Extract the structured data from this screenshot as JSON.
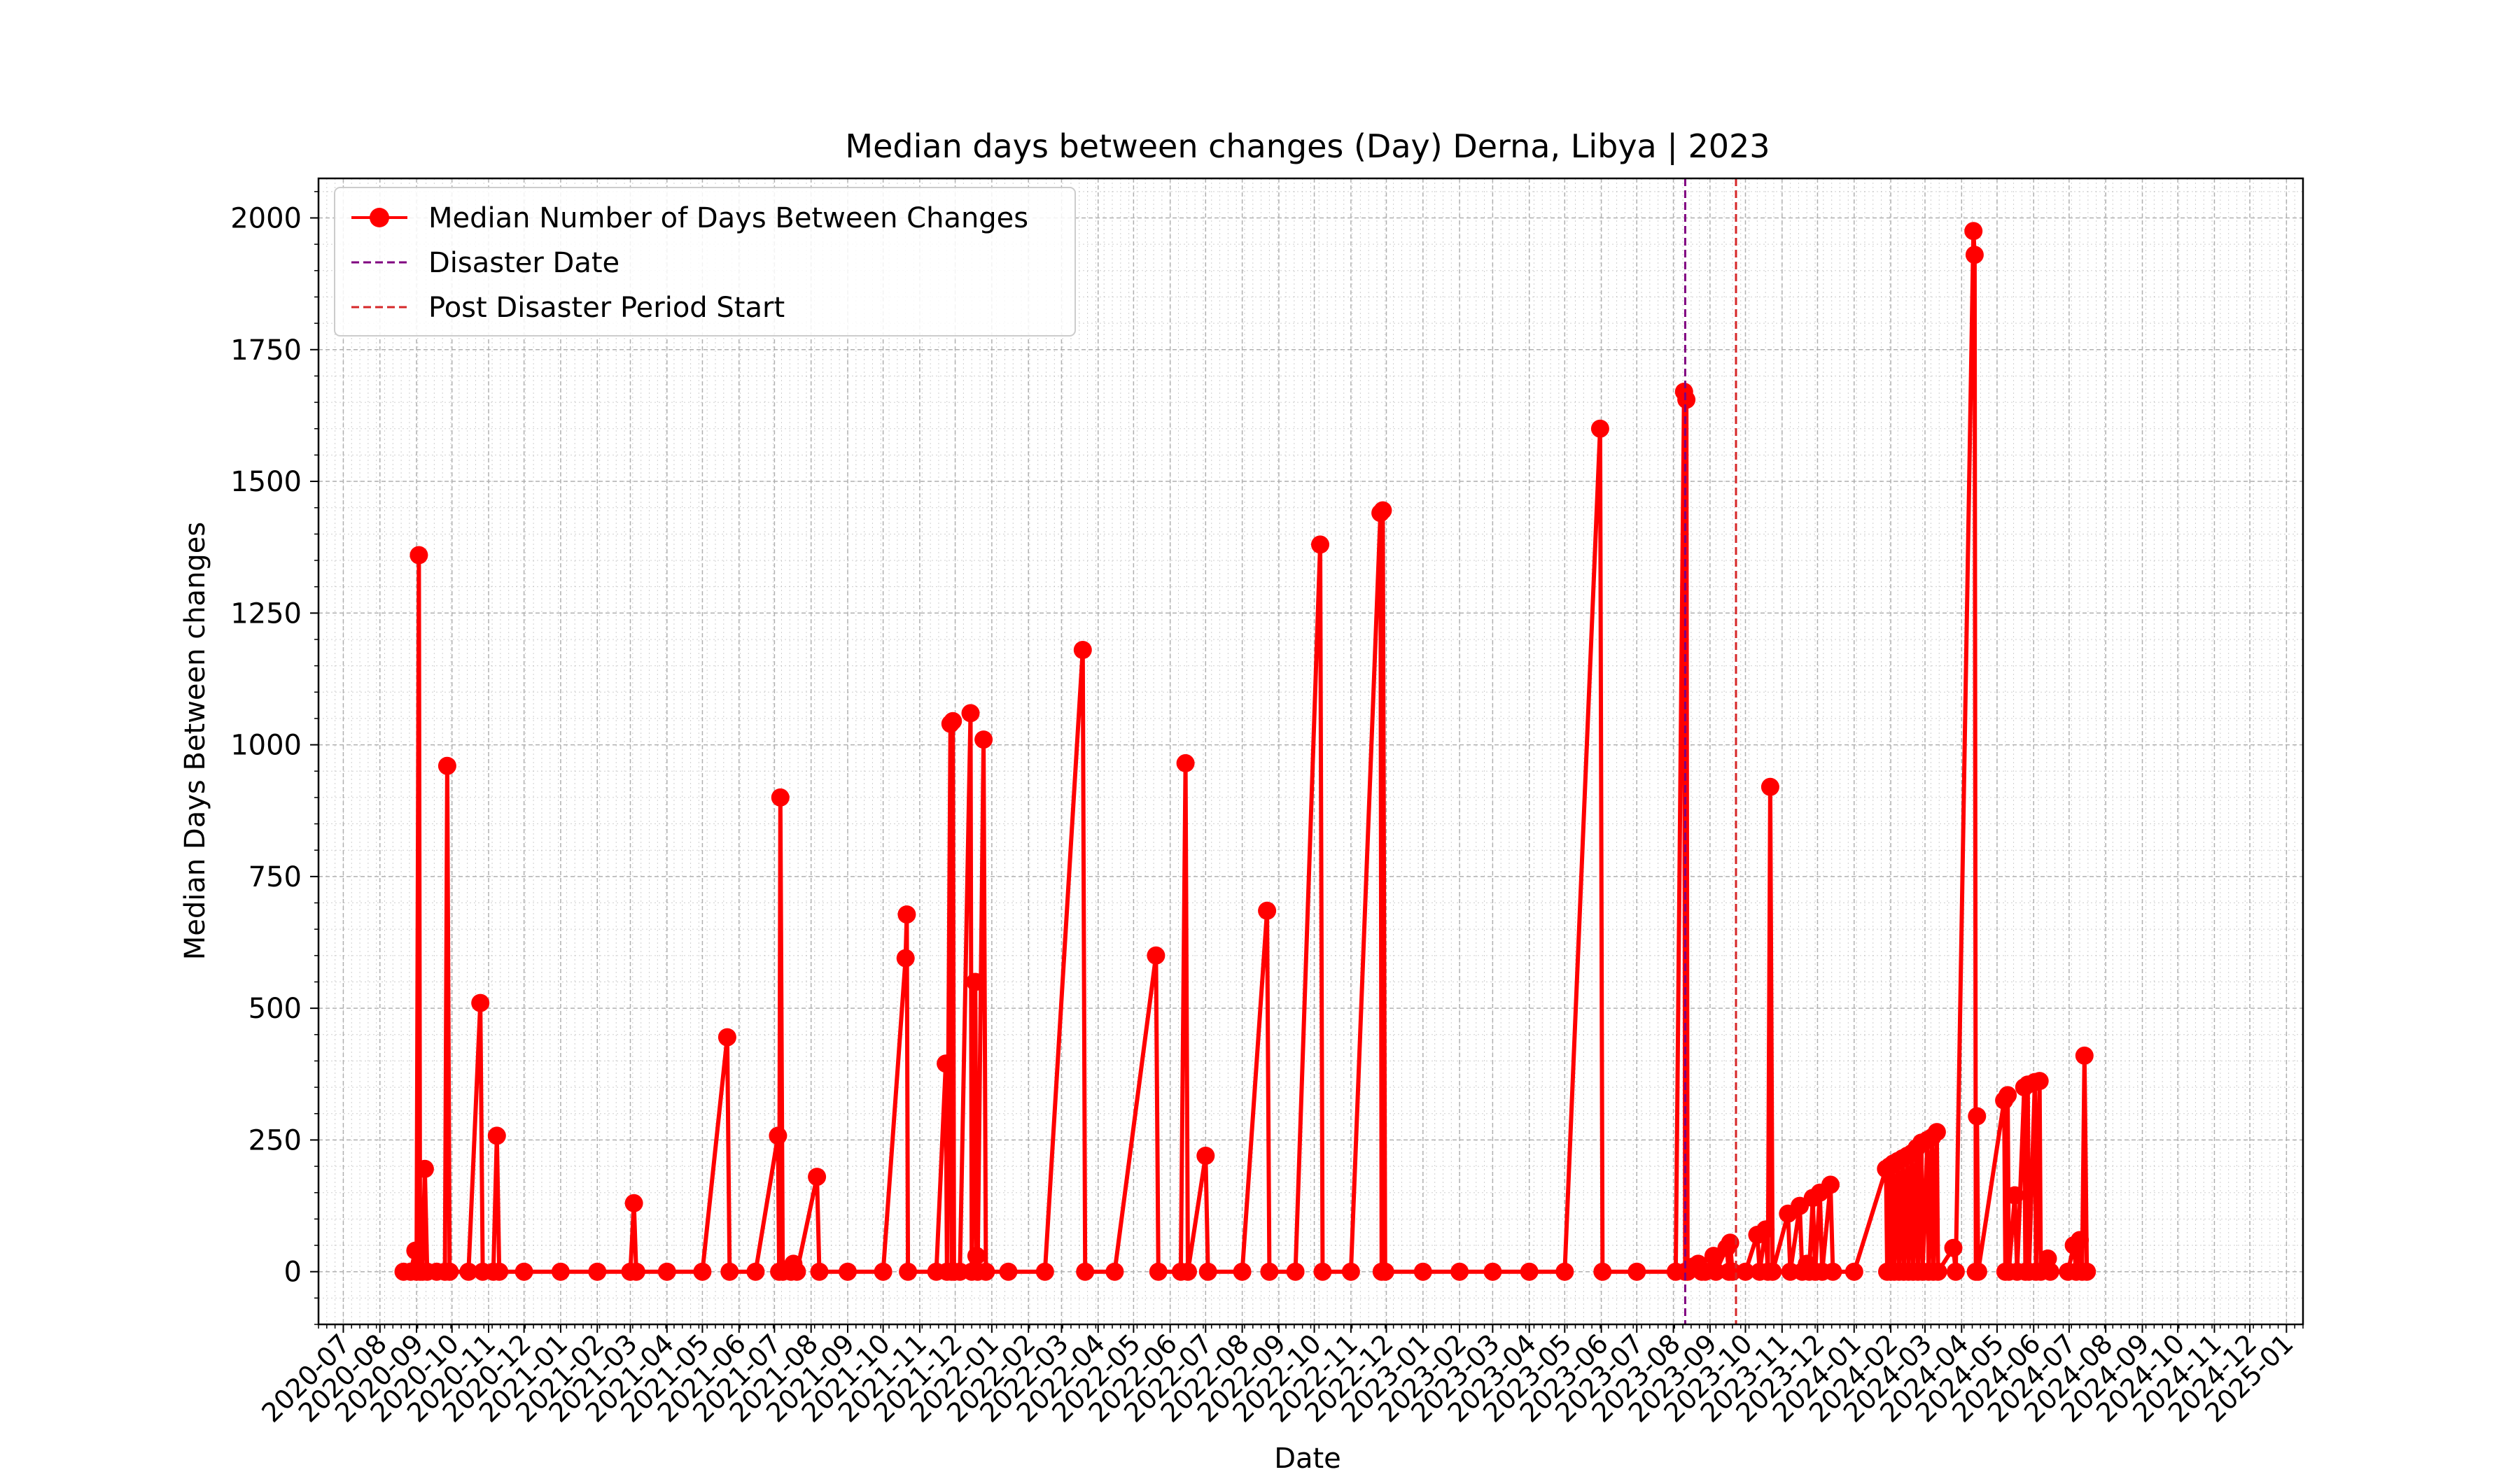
{
  "chart_data": {
    "type": "line",
    "title": "Median days between changes (Day) Derna, Libya | 2023",
    "xlabel": "Date",
    "ylabel": "Median Days Between changes",
    "xlim": [
      "2020-06-10",
      "2025-01-15"
    ],
    "ylim": [
      -100,
      2075
    ],
    "yticks": [
      0,
      250,
      500,
      750,
      1000,
      1250,
      1500,
      1750,
      2000
    ],
    "xticks": [
      "2020-07",
      "2020-08",
      "2020-09",
      "2020-10",
      "2020-11",
      "2020-12",
      "2021-01",
      "2021-02",
      "2021-03",
      "2021-04",
      "2021-05",
      "2021-06",
      "2021-07",
      "2021-08",
      "2021-09",
      "2021-10",
      "2021-11",
      "2021-12",
      "2022-01",
      "2022-02",
      "2022-03",
      "2022-04",
      "2022-05",
      "2022-06",
      "2022-07",
      "2022-08",
      "2022-09",
      "2022-10",
      "2022-11",
      "2022-12",
      "2023-01",
      "2023-02",
      "2023-03",
      "2023-04",
      "2023-05",
      "2023-06",
      "2023-07",
      "2023-08",
      "2023-09",
      "2023-10",
      "2023-11",
      "2023-12",
      "2024-01",
      "2024-02",
      "2024-03",
      "2024-04",
      "2024-05",
      "2024-06",
      "2024-07",
      "2024-08",
      "2024-09",
      "2024-10",
      "2024-11",
      "2024-12",
      "2025-01"
    ],
    "grid": true,
    "legend_position": "top-left",
    "colors": {
      "series": "#ff0000",
      "disaster": "#800080",
      "post": "#d62728",
      "grid": "#b0b0b0"
    },
    "series": [
      {
        "name": "Median Number of Days Between Changes",
        "points": [
          [
            "2020-08-21",
            0
          ],
          [
            "2020-08-27",
            0
          ],
          [
            "2020-08-31",
            40
          ],
          [
            "2020-09-01",
            0
          ],
          [
            "2020-09-03",
            1360
          ],
          [
            "2020-09-04",
            0
          ],
          [
            "2020-09-06",
            0
          ],
          [
            "2020-09-08",
            195
          ],
          [
            "2020-09-10",
            0
          ],
          [
            "2020-09-18",
            0
          ],
          [
            "2020-09-25",
            0
          ],
          [
            "2020-09-27",
            960
          ],
          [
            "2020-09-29",
            0
          ],
          [
            "2020-10-15",
            0
          ],
          [
            "2020-10-25",
            510
          ],
          [
            "2020-10-27",
            0
          ],
          [
            "2020-11-05",
            0
          ],
          [
            "2020-11-08",
            258
          ],
          [
            "2020-11-10",
            0
          ],
          [
            "2020-12-01",
            0
          ],
          [
            "2021-01-01",
            0
          ],
          [
            "2021-02-01",
            0
          ],
          [
            "2021-03-01",
            0
          ],
          [
            "2021-03-04",
            130
          ],
          [
            "2021-03-06",
            0
          ],
          [
            "2021-04-01",
            0
          ],
          [
            "2021-05-01",
            0
          ],
          [
            "2021-05-22",
            445
          ],
          [
            "2021-05-24",
            0
          ],
          [
            "2021-06-15",
            0
          ],
          [
            "2021-07-04",
            258
          ],
          [
            "2021-07-05",
            0
          ],
          [
            "2021-07-06",
            900
          ],
          [
            "2021-07-08",
            0
          ],
          [
            "2021-07-15",
            0
          ],
          [
            "2021-07-17",
            15
          ],
          [
            "2021-07-20",
            0
          ],
          [
            "2021-08-06",
            180
          ],
          [
            "2021-08-08",
            0
          ],
          [
            "2021-09-01",
            0
          ],
          [
            "2021-10-01",
            0
          ],
          [
            "2021-10-20",
            595
          ],
          [
            "2021-10-21",
            678
          ],
          [
            "2021-10-22",
            0
          ],
          [
            "2021-11-15",
            0
          ],
          [
            "2021-11-23",
            395
          ],
          [
            "2021-11-24",
            0
          ],
          [
            "2021-11-27",
            1040
          ],
          [
            "2021-11-28",
            0
          ],
          [
            "2021-11-29",
            1045
          ],
          [
            "2021-11-30",
            0
          ],
          [
            "2021-12-05",
            0
          ],
          [
            "2021-12-14",
            1060
          ],
          [
            "2021-12-15",
            0
          ],
          [
            "2021-12-18",
            550
          ],
          [
            "2021-12-19",
            30
          ],
          [
            "2021-12-20",
            0
          ],
          [
            "2021-12-25",
            1010
          ],
          [
            "2021-12-27",
            0
          ],
          [
            "2022-01-15",
            0
          ],
          [
            "2022-02-15",
            0
          ],
          [
            "2022-03-19",
            1180
          ],
          [
            "2022-03-21",
            0
          ],
          [
            "2022-04-15",
            0
          ],
          [
            "2022-05-20",
            600
          ],
          [
            "2022-05-22",
            0
          ],
          [
            "2022-06-10",
            0
          ],
          [
            "2022-06-14",
            965
          ],
          [
            "2022-06-16",
            0
          ],
          [
            "2022-07-01",
            220
          ],
          [
            "2022-07-03",
            0
          ],
          [
            "2022-08-01",
            0
          ],
          [
            "2022-08-22",
            685
          ],
          [
            "2022-08-24",
            0
          ],
          [
            "2022-09-15",
            0
          ],
          [
            "2022-10-06",
            1380
          ],
          [
            "2022-10-08",
            0
          ],
          [
            "2022-11-01",
            0
          ],
          [
            "2022-11-26",
            1440
          ],
          [
            "2022-11-27",
            0
          ],
          [
            "2022-11-28",
            1445
          ],
          [
            "2022-11-30",
            0
          ],
          [
            "2023-01-01",
            0
          ],
          [
            "2023-02-01",
            0
          ],
          [
            "2023-03-01",
            0
          ],
          [
            "2023-04-01",
            0
          ],
          [
            "2023-05-01",
            0
          ],
          [
            "2023-05-31",
            1600
          ],
          [
            "2023-06-02",
            0
          ],
          [
            "2023-07-01",
            0
          ],
          [
            "2023-08-03",
            0
          ],
          [
            "2023-08-10",
            1670
          ],
          [
            "2023-08-11",
            0
          ],
          [
            "2023-08-12",
            1655
          ],
          [
            "2023-08-13",
            0
          ],
          [
            "2023-08-18",
            10
          ],
          [
            "2023-08-22",
            15
          ],
          [
            "2023-08-25",
            0
          ],
          [
            "2023-08-28",
            0
          ],
          [
            "2023-09-04",
            30
          ],
          [
            "2023-09-06",
            0
          ],
          [
            "2023-09-15",
            45
          ],
          [
            "2023-09-17",
            0
          ],
          [
            "2023-09-18",
            55
          ],
          [
            "2023-09-20",
            0
          ],
          [
            "2023-10-01",
            0
          ],
          [
            "2023-10-11",
            70
          ],
          [
            "2023-10-13",
            0
          ],
          [
            "2023-10-18",
            80
          ],
          [
            "2023-10-20",
            0
          ],
          [
            "2023-10-22",
            920
          ],
          [
            "2023-10-24",
            0
          ],
          [
            "2023-11-06",
            110
          ],
          [
            "2023-11-08",
            0
          ],
          [
            "2023-11-16",
            125
          ],
          [
            "2023-11-18",
            0
          ],
          [
            "2023-11-22",
            15
          ],
          [
            "2023-11-24",
            0
          ],
          [
            "2023-11-27",
            140
          ],
          [
            "2023-11-29",
            0
          ],
          [
            "2023-12-03",
            150
          ],
          [
            "2023-12-05",
            0
          ],
          [
            "2023-12-12",
            165
          ],
          [
            "2023-12-14",
            0
          ],
          [
            "2024-01-01",
            0
          ],
          [
            "2024-01-28",
            195
          ],
          [
            "2024-01-29",
            0
          ],
          [
            "2024-01-31",
            200
          ],
          [
            "2024-02-01",
            0
          ],
          [
            "2024-02-03",
            205
          ],
          [
            "2024-02-04",
            0
          ],
          [
            "2024-02-07",
            210
          ],
          [
            "2024-02-08",
            0
          ],
          [
            "2024-02-11",
            215
          ],
          [
            "2024-02-12",
            0
          ],
          [
            "2024-02-15",
            220
          ],
          [
            "2024-02-16",
            0
          ],
          [
            "2024-02-19",
            225
          ],
          [
            "2024-02-20",
            0
          ],
          [
            "2024-02-23",
            235
          ],
          [
            "2024-02-24",
            0
          ],
          [
            "2024-02-27",
            245
          ],
          [
            "2024-02-28",
            0
          ],
          [
            "2024-03-03",
            250
          ],
          [
            "2024-03-04",
            0
          ],
          [
            "2024-03-07",
            255
          ],
          [
            "2024-03-08",
            0
          ],
          [
            "2024-03-11",
            265
          ],
          [
            "2024-03-12",
            0
          ],
          [
            "2024-03-25",
            45
          ],
          [
            "2024-03-27",
            0
          ],
          [
            "2024-04-11",
            1975
          ],
          [
            "2024-04-12",
            1930
          ],
          [
            "2024-04-13",
            0
          ],
          [
            "2024-04-14",
            295
          ],
          [
            "2024-04-15",
            0
          ],
          [
            "2024-05-07",
            325
          ],
          [
            "2024-05-08",
            0
          ],
          [
            "2024-05-10",
            335
          ],
          [
            "2024-05-11",
            0
          ],
          [
            "2024-05-16",
            145
          ],
          [
            "2024-05-18",
            0
          ],
          [
            "2024-05-24",
            350
          ],
          [
            "2024-05-25",
            0
          ],
          [
            "2024-05-27",
            355
          ],
          [
            "2024-05-28",
            0
          ],
          [
            "2024-06-02",
            360
          ],
          [
            "2024-06-03",
            0
          ],
          [
            "2024-06-06",
            362
          ],
          [
            "2024-06-07",
            0
          ],
          [
            "2024-06-13",
            25
          ],
          [
            "2024-06-15",
            0
          ],
          [
            "2024-06-30",
            0
          ],
          [
            "2024-07-05",
            50
          ],
          [
            "2024-07-07",
            0
          ],
          [
            "2024-07-10",
            60
          ],
          [
            "2024-07-12",
            0
          ],
          [
            "2024-07-14",
            410
          ],
          [
            "2024-07-16",
            0
          ]
        ]
      }
    ],
    "vlines": [
      {
        "name": "Disaster Date",
        "date": "2023-08-11",
        "style": "dashed",
        "color": "#800080"
      },
      {
        "name": "Post Disaster Period Start",
        "date": "2023-09-23",
        "style": "dashed",
        "color": "#d62728"
      }
    ],
    "legend": [
      {
        "label": "Median Number of Days Between Changes",
        "marker": "line-dot",
        "color": "#ff0000"
      },
      {
        "label": "Disaster Date",
        "marker": "dashed",
        "color": "#800080"
      },
      {
        "label": "Post Disaster Period Start",
        "marker": "dashed",
        "color": "#d62728"
      }
    ]
  }
}
